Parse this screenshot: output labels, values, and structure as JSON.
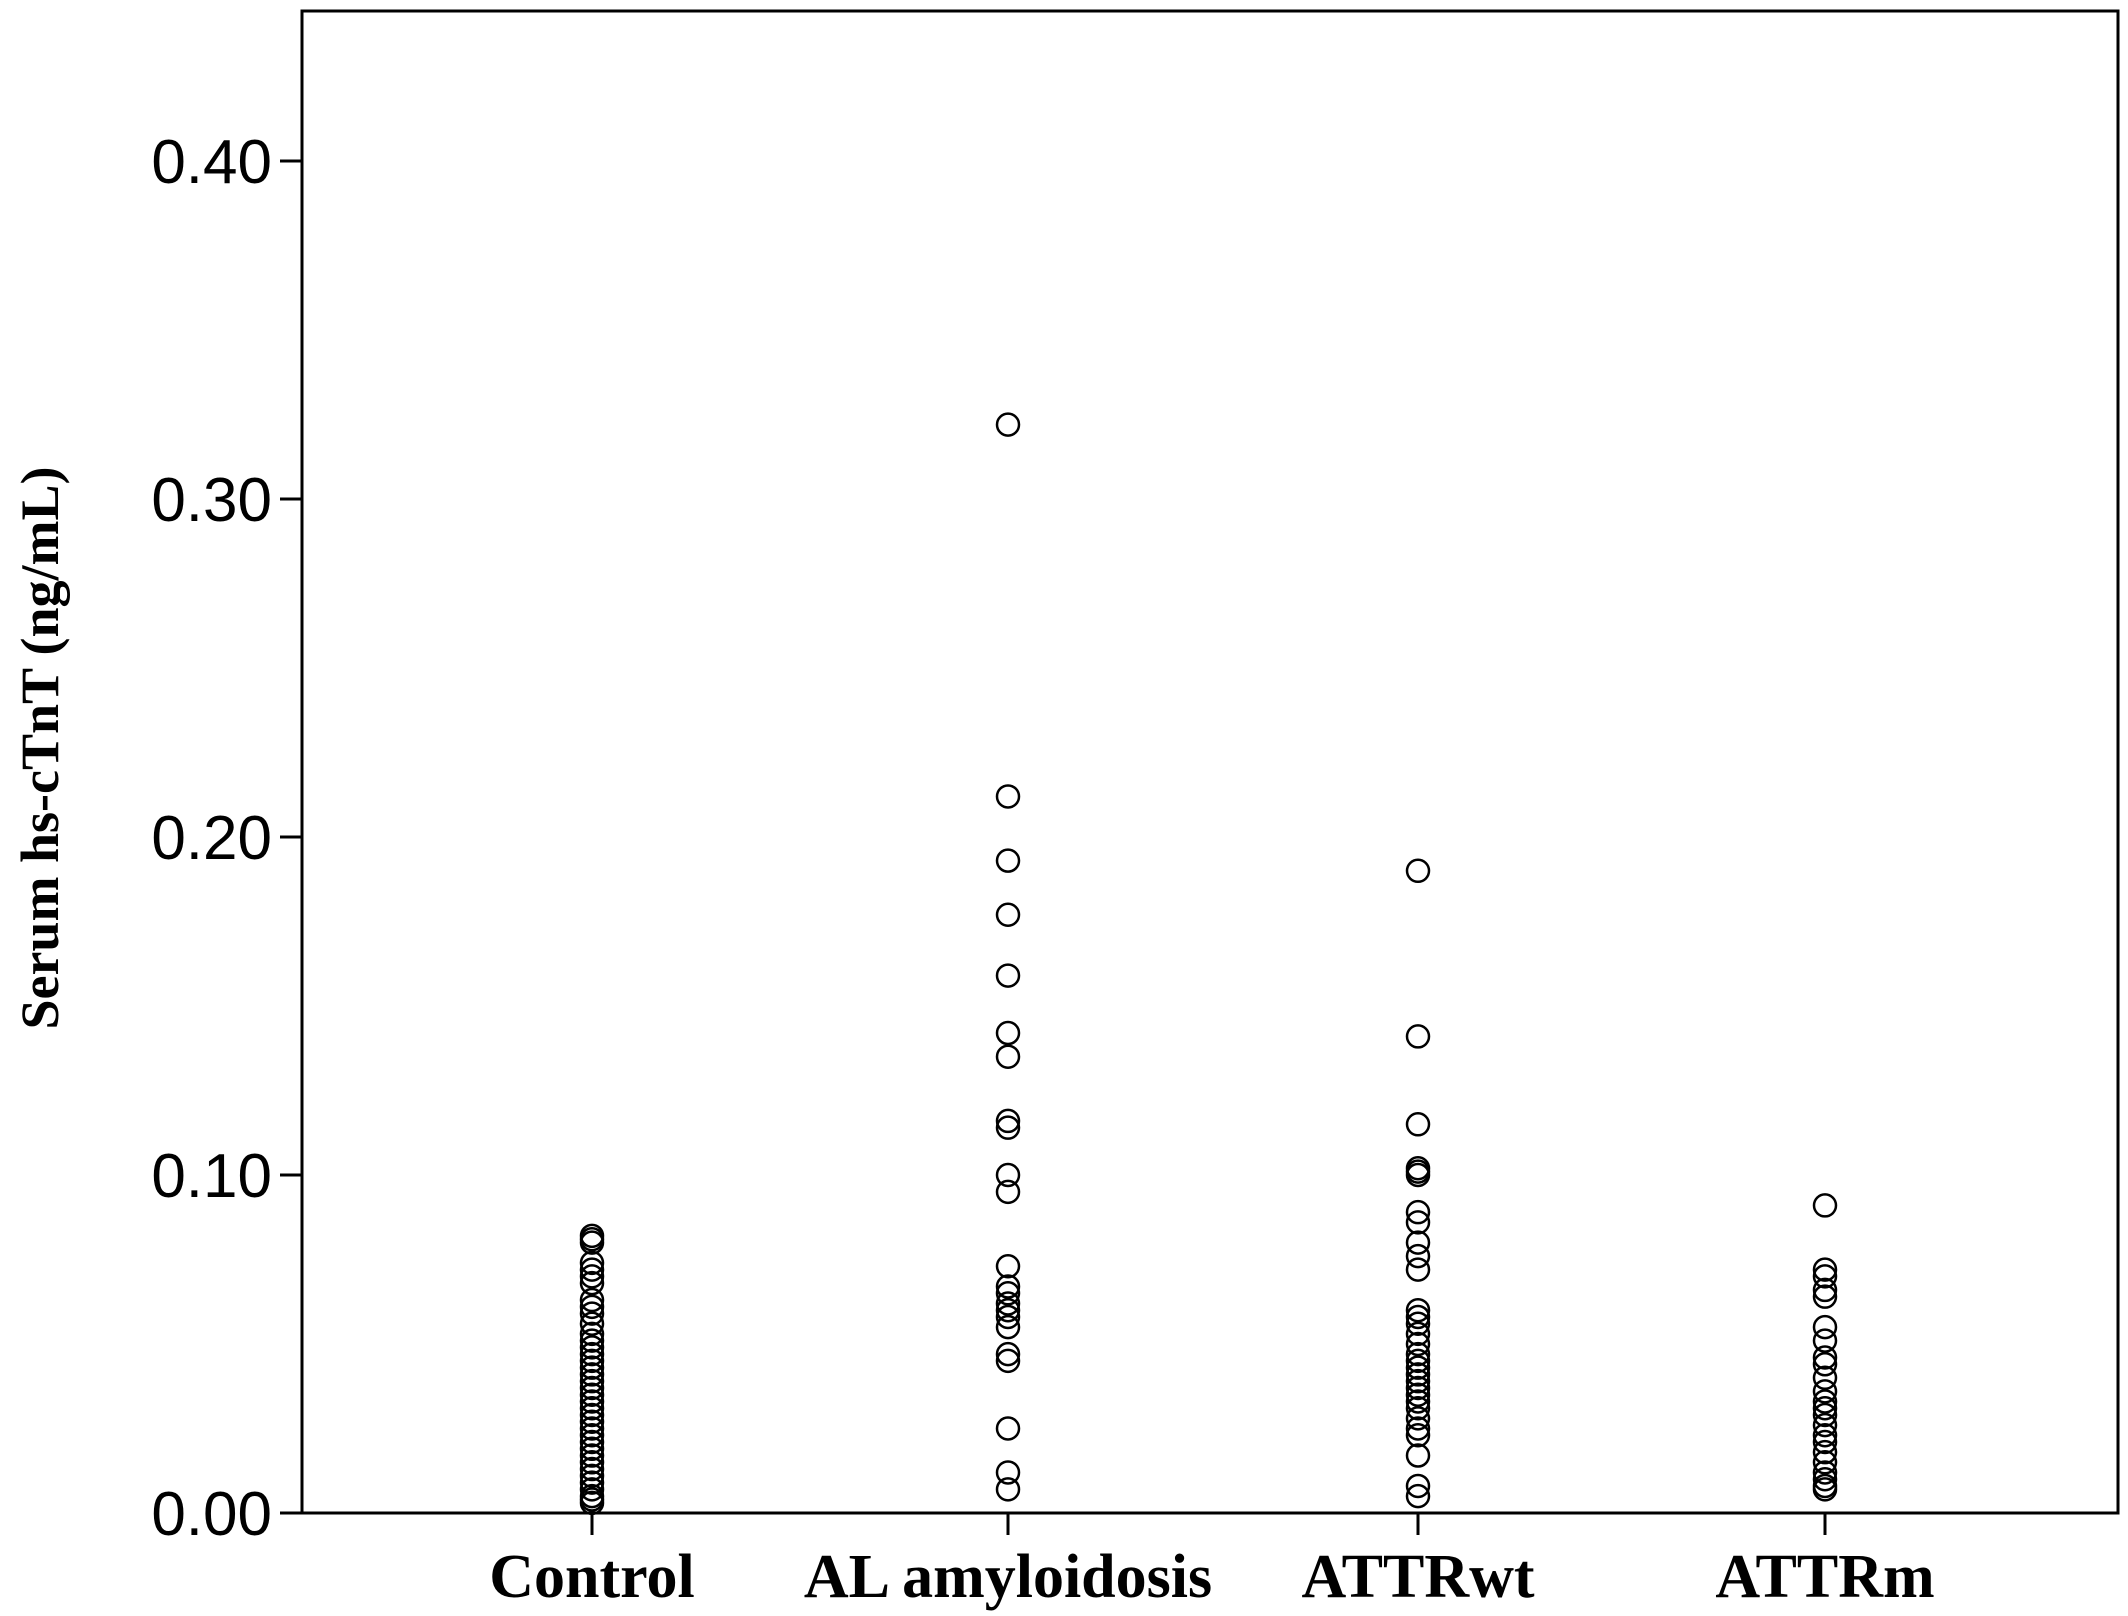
{
  "chart_data": {
    "type": "scatter",
    "title": "",
    "xlabel": "",
    "ylabel": "Serum hs-cTnT (ng/mL)",
    "ylim": [
      0,
      0.44
    ],
    "yticks": [
      0.0,
      0.1,
      0.2,
      0.3,
      0.4
    ],
    "ytick_labels": [
      "0.00",
      "0.10",
      "0.20",
      "0.30",
      "0.40"
    ],
    "categories": [
      "Control",
      "AL amyloidosis",
      "ATTRwt",
      "ATTRm"
    ],
    "grid": false,
    "marker": "open-circle",
    "marker_color": "#000000",
    "series": [
      {
        "values": [
          0.082,
          0.081,
          0.08,
          0.074,
          0.072,
          0.07,
          0.068,
          0.063,
          0.061,
          0.059,
          0.056,
          0.053,
          0.051,
          0.049,
          0.047,
          0.045,
          0.043,
          0.041,
          0.039,
          0.037,
          0.035,
          0.033,
          0.031,
          0.029,
          0.027,
          0.025,
          0.023,
          0.021,
          0.019,
          0.017,
          0.015,
          0.013,
          0.011,
          0.009,
          0.007,
          0.005,
          0.004,
          0.003
        ]
      },
      {
        "values": [
          0.322,
          0.212,
          0.193,
          0.177,
          0.159,
          0.142,
          0.135,
          0.116,
          0.114,
          0.1,
          0.095,
          0.073,
          0.067,
          0.065,
          0.062,
          0.06,
          0.058,
          0.055,
          0.047,
          0.045,
          0.025,
          0.012,
          0.007
        ]
      },
      {
        "values": [
          0.19,
          0.141,
          0.115,
          0.102,
          0.101,
          0.1,
          0.089,
          0.086,
          0.08,
          0.076,
          0.072,
          0.06,
          0.058,
          0.056,
          0.053,
          0.05,
          0.047,
          0.045,
          0.043,
          0.041,
          0.039,
          0.037,
          0.035,
          0.033,
          0.031,
          0.028,
          0.025,
          0.023,
          0.017,
          0.008,
          0.005
        ]
      },
      {
        "values": [
          0.091,
          0.072,
          0.07,
          0.066,
          0.064,
          0.055,
          0.051,
          0.046,
          0.044,
          0.04,
          0.036,
          0.033,
          0.031,
          0.029,
          0.026,
          0.023,
          0.021,
          0.018,
          0.015,
          0.012,
          0.01,
          0.008,
          0.007
        ]
      }
    ]
  }
}
